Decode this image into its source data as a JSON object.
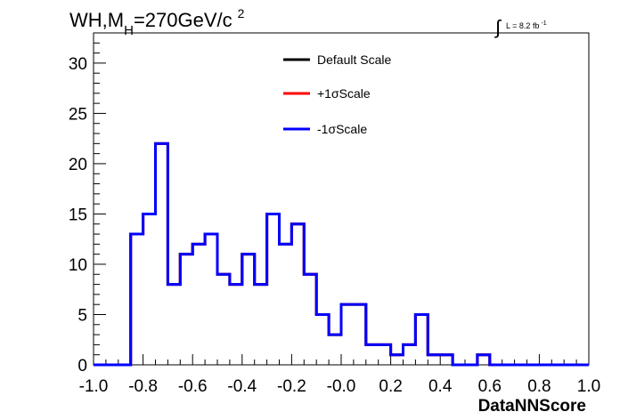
{
  "title": {
    "main": "WH,M",
    "sub": "H",
    "rest": "=270GeV/c",
    "sup": "2"
  },
  "lumi": {
    "integral": "∫",
    "text": "L = 8.2 fb",
    "sup": "-1"
  },
  "colors": {
    "default": "#000000",
    "plus": "#ff0000",
    "minus": "#0000ff"
  },
  "chart_data": {
    "type": "line",
    "style": "step-histogram",
    "xlabel": "DataNNScore",
    "ylabel": "",
    "xlim": [
      -1.0,
      1.0
    ],
    "ylim": [
      0,
      33
    ],
    "x_ticks": [
      "-1.0",
      "-0.8",
      "-0.6",
      "-0.4",
      "-0.2",
      "-0.0",
      "0.2",
      "0.4",
      "0.6",
      "0.8",
      "1.0"
    ],
    "y_ticks": [
      "0",
      "5",
      "10",
      "15",
      "20",
      "25",
      "30"
    ],
    "bin_edges": [
      -1.0,
      -0.95,
      -0.9,
      -0.85,
      -0.8,
      -0.75,
      -0.7,
      -0.65,
      -0.6,
      -0.55,
      -0.5,
      -0.45,
      -0.4,
      -0.35,
      -0.3,
      -0.25,
      -0.2,
      -0.15,
      -0.1,
      -0.05,
      0.0,
      0.05,
      0.1,
      0.15,
      0.2,
      0.25,
      0.3,
      0.35,
      0.4,
      0.45,
      0.5,
      0.55,
      0.6,
      0.65,
      0.7,
      0.75,
      0.8,
      0.85,
      0.9,
      0.95,
      1.0
    ],
    "legend_position": "top-center",
    "series": [
      {
        "name": "Default Scale",
        "values": [
          0,
          0,
          0,
          13,
          15,
          22,
          8,
          11,
          12,
          13,
          9,
          8,
          11,
          8,
          15,
          12,
          14,
          9,
          5,
          3,
          6,
          6,
          2,
          2,
          1,
          2,
          5,
          1,
          1,
          0,
          0,
          1,
          0,
          0,
          0,
          0,
          0,
          0,
          0,
          0
        ]
      },
      {
        "name": "+1σScale",
        "values": [
          0,
          0,
          0,
          13,
          15,
          22,
          8,
          11,
          12,
          13,
          9,
          8,
          11,
          8,
          15,
          12,
          14,
          9,
          5,
          3,
          6,
          6,
          2,
          2,
          1,
          2,
          5,
          1,
          1,
          0,
          0,
          1,
          0,
          0,
          0,
          0,
          0,
          0,
          0,
          0
        ]
      },
      {
        "name": "-1σScale",
        "values": [
          0,
          0,
          0,
          13,
          15,
          22,
          8,
          11,
          12,
          13,
          9,
          8,
          11,
          8,
          15,
          12,
          14,
          9,
          5,
          3,
          6,
          6,
          2,
          2,
          1,
          2,
          5,
          1,
          1,
          0,
          0,
          1,
          0,
          0,
          0,
          0,
          0,
          0,
          0,
          0
        ]
      }
    ]
  }
}
